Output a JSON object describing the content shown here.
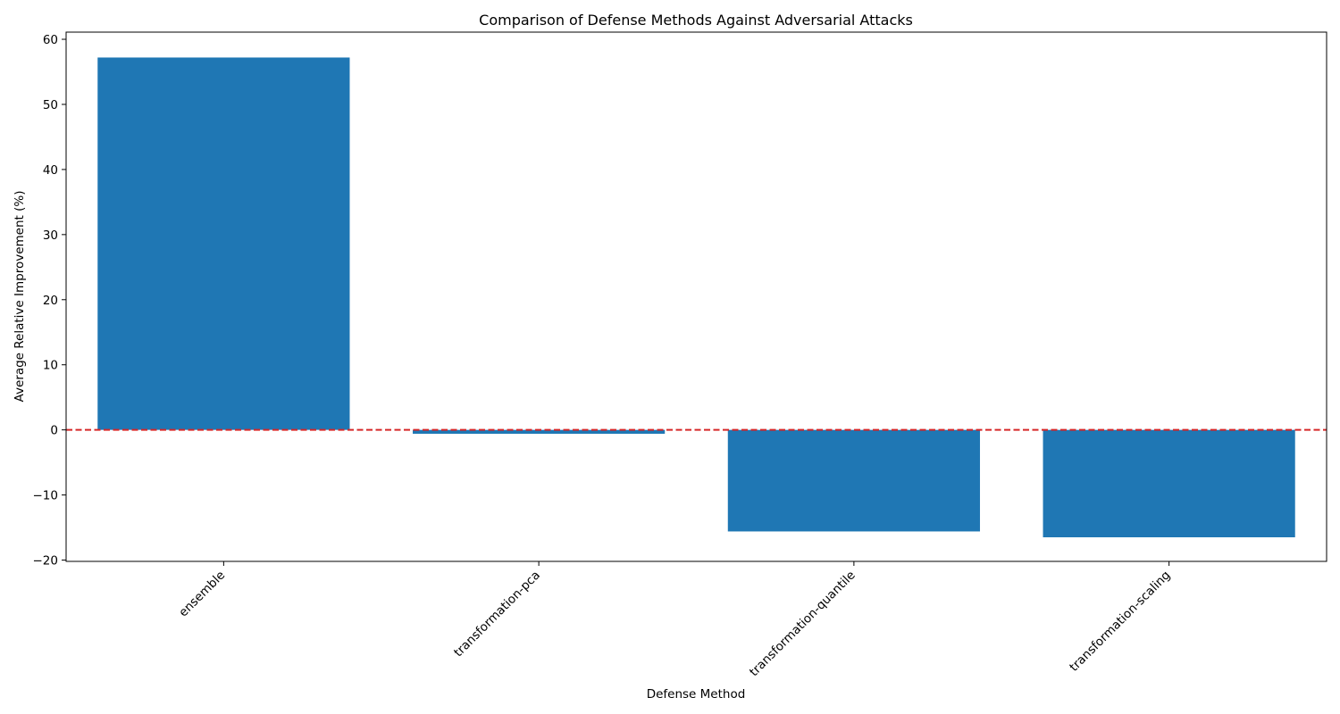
{
  "chart_data": {
    "type": "bar",
    "title": "Comparison of Defense Methods Against Adversarial Attacks",
    "xlabel": "Defense Method",
    "ylabel": "Average Relative Improvement (%)",
    "categories": [
      "ensemble",
      "transformation-pca",
      "transformation-quantile",
      "transformation-scaling"
    ],
    "values": [
      57.2,
      -0.6,
      -15.6,
      -16.5
    ],
    "ylim": [
      -20.2,
      61.1
    ],
    "yticks": [
      -20,
      -10,
      0,
      10,
      20,
      30,
      40,
      50,
      60
    ],
    "bar_color": "#1f77b4",
    "reference_line": {
      "value": 0,
      "color": "#d62728",
      "style": "dashed"
    },
    "grid": false,
    "legend": "none"
  }
}
